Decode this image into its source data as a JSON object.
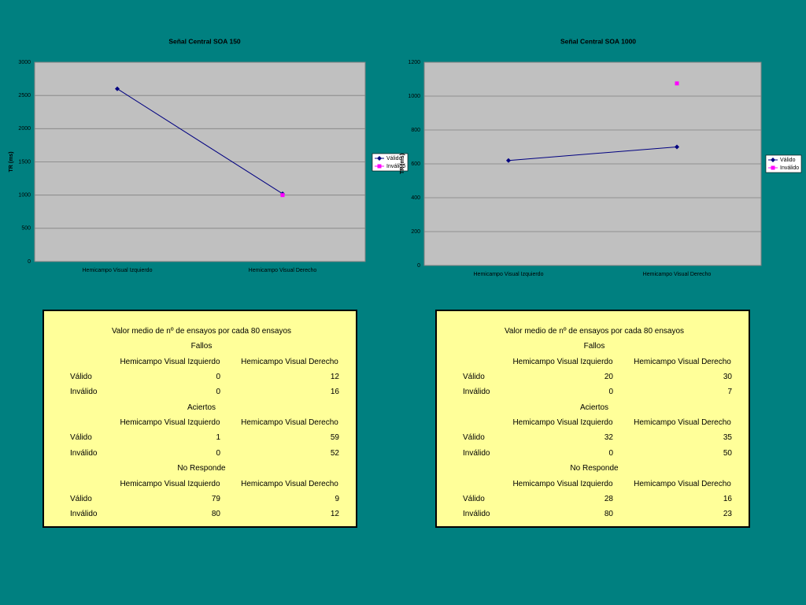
{
  "chart_data": [
    {
      "type": "line",
      "title": "Señal Central SOA 150",
      "y_label": "TR (ms)",
      "categories": [
        "Hemicampo Visual Izquierdo",
        "Hemicampo Visual Derecho"
      ],
      "series": [
        {
          "name": "Válido",
          "color": "#000080",
          "marker": "diamond",
          "values": [
            2600,
            1020
          ]
        },
        {
          "name": "Inválido",
          "color": "#ff00ff",
          "marker": "square",
          "values": [
            null,
            1000
          ]
        }
      ],
      "ylim": [
        0,
        3000
      ],
      "yticks": [
        0,
        500,
        1000,
        1500,
        2000,
        2500,
        3000
      ],
      "grid": true,
      "legend": "right"
    },
    {
      "type": "line",
      "title": "Señal Central SOA 1000",
      "y_label": "TR (ms)",
      "categories": [
        "Hemicampo Visual Izquierdo",
        "Hemicampo Visual Derecho"
      ],
      "series": [
        {
          "name": "Válido",
          "color": "#000080",
          "marker": "diamond",
          "values": [
            620,
            700
          ]
        },
        {
          "name": "Inválido",
          "color": "#ff00ff",
          "marker": "square",
          "values": [
            null,
            1075
          ]
        }
      ],
      "ylim": [
        0,
        1200
      ],
      "yticks": [
        0,
        200,
        400,
        600,
        800,
        1000,
        1200
      ],
      "grid": true,
      "legend": "right"
    }
  ],
  "tables": [
    {
      "title": "Valor medio de nº de ensayos por cada 80 ensayos",
      "sections": [
        {
          "title": "Fallos",
          "headers": [
            "Hemicampo Visual Izquierdo",
            "Hemicampo Visual Derecho"
          ],
          "rows": [
            [
              "Válido",
              "0",
              "12"
            ],
            [
              "Inválido",
              "0",
              "16"
            ]
          ]
        },
        {
          "title": "Aciertos",
          "headers": [
            "Hemicampo Visual Izquierdo",
            "Hemicampo Visual Derecho"
          ],
          "rows": [
            [
              "Válido",
              "1",
              "59"
            ],
            [
              "Inválido",
              "0",
              "52"
            ]
          ]
        },
        {
          "title": "No Responde",
          "headers": [
            "Hemicampo Visual Izquierdo",
            "Hemicampo Visual Derecho"
          ],
          "rows": [
            [
              "Válido",
              "79",
              "9"
            ],
            [
              "Inválido",
              "80",
              "12"
            ]
          ]
        }
      ]
    },
    {
      "title": "Valor medio de nº de ensayos por cada 80 ensayos",
      "sections": [
        {
          "title": "Fallos",
          "headers": [
            "Hemicampo Visual Izquierdo",
            "Hemicampo Visual Derecho"
          ],
          "rows": [
            [
              "Válido",
              "20",
              "30"
            ],
            [
              "Inválido",
              "0",
              "7"
            ]
          ]
        },
        {
          "title": "Aciertos",
          "headers": [
            "Hemicampo Visual Izquierdo",
            "Hemicampo Visual Derecho"
          ],
          "rows": [
            [
              "Válido",
              "32",
              "35"
            ],
            [
              "Inválido",
              "0",
              "50"
            ]
          ]
        },
        {
          "title": "No Responde",
          "headers": [
            "Hemicampo Visual Izquierdo",
            "Hemicampo Visual Derecho"
          ],
          "rows": [
            [
              "Válido",
              "28",
              "16"
            ],
            [
              "Inválido",
              "80",
              "23"
            ]
          ]
        }
      ]
    }
  ]
}
